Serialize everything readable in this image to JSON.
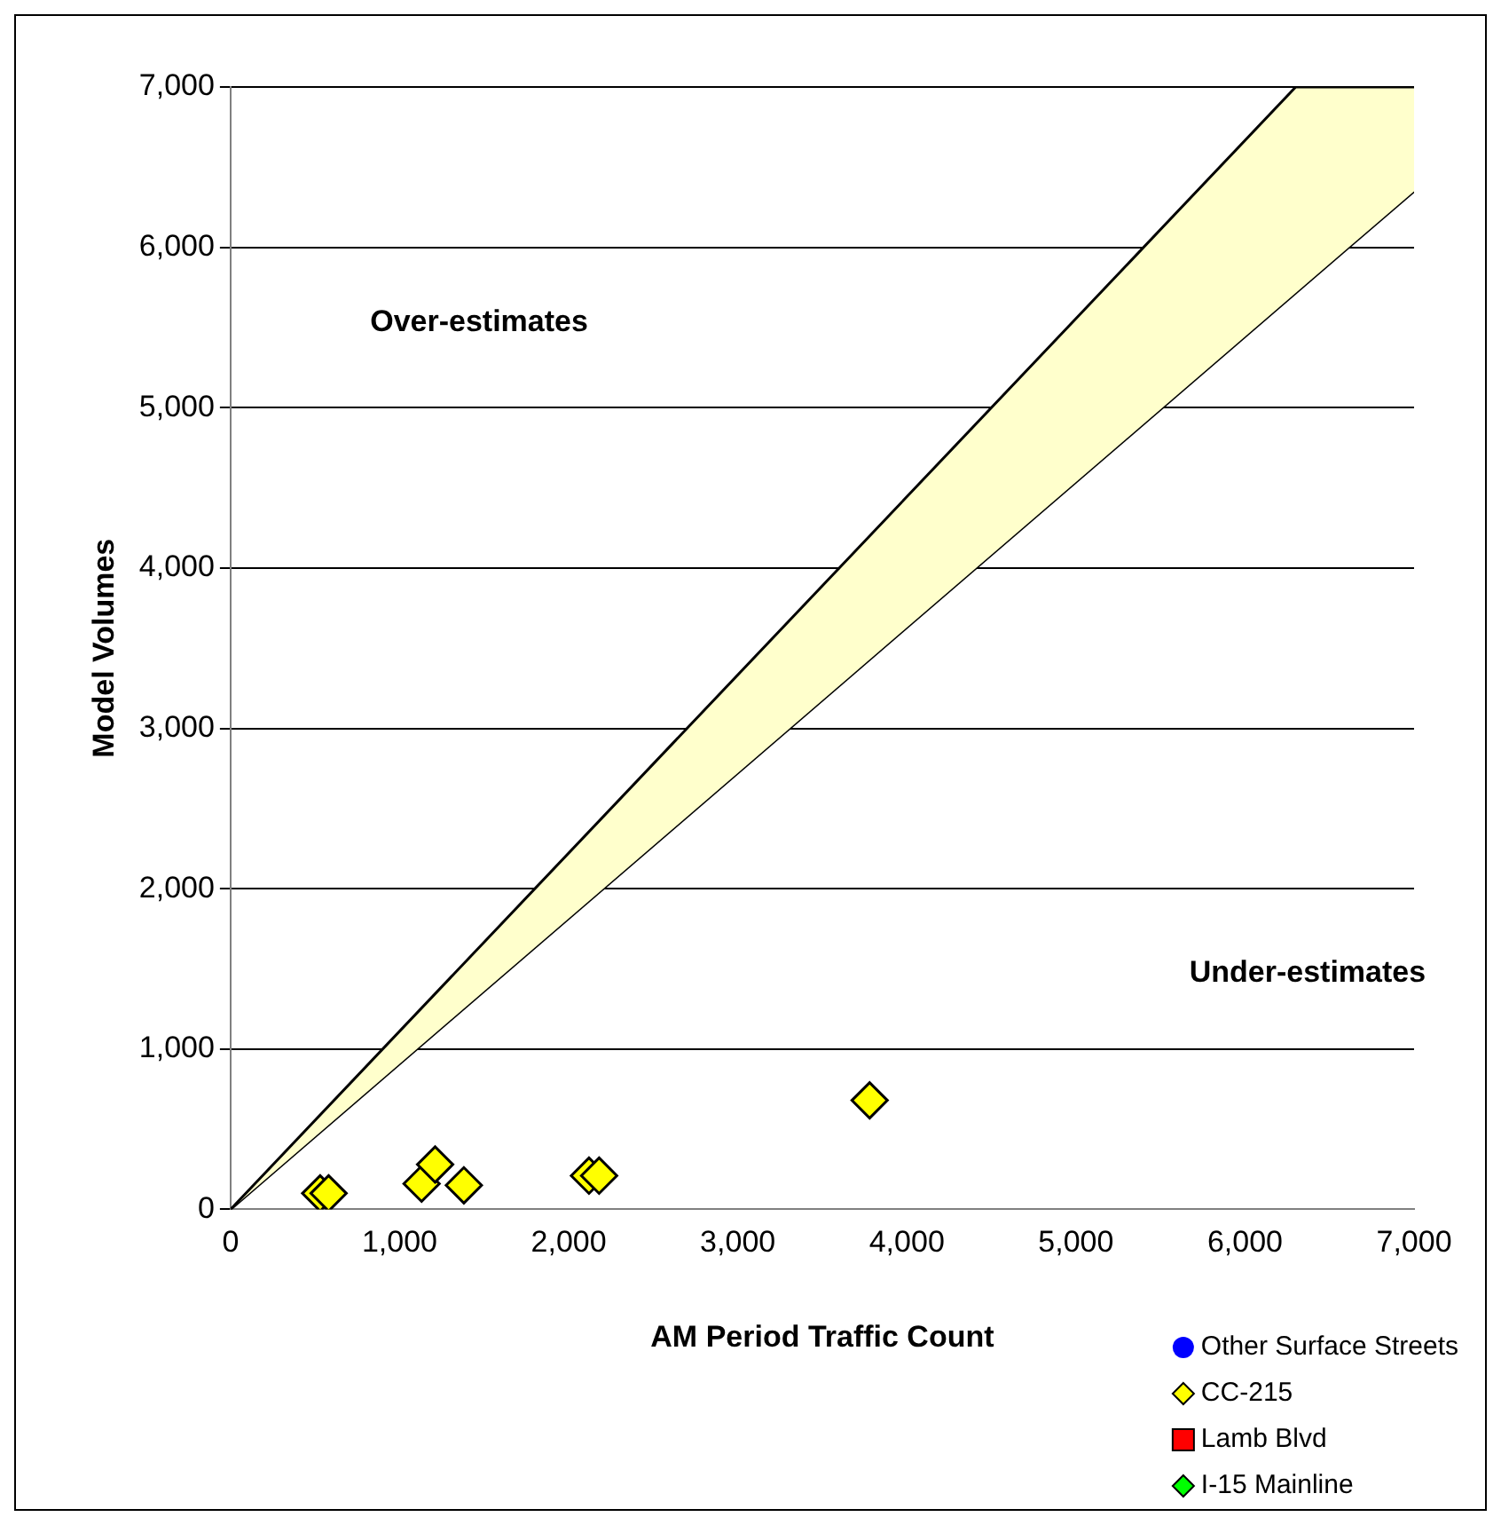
{
  "chart_data": {
    "type": "scatter",
    "xlabel": "AM Period Traffic Count",
    "ylabel": "Model Volumes",
    "xlim": [
      0,
      7000
    ],
    "ylim": [
      0,
      7000
    ],
    "xticks": [
      0,
      {
        "value": 1000,
        "label": "1,000"
      },
      {
        "value": 2000,
        "label": "2,000"
      },
      {
        "value": 3000,
        "label": "3,000"
      },
      {
        "value": 4000,
        "label": "4,000"
      },
      {
        "value": 5000,
        "label": "5,000"
      },
      {
        "value": 6000,
        "label": "6,000"
      },
      {
        "value": 7000,
        "label": "7,000"
      }
    ],
    "yticks": [
      0,
      {
        "value": 1000,
        "label": "1,000"
      },
      {
        "value": 2000,
        "label": "2,000"
      },
      {
        "value": 3000,
        "label": "3,000"
      },
      {
        "value": 4000,
        "label": "4,000"
      },
      {
        "value": 5000,
        "label": "5,000"
      },
      {
        "value": 6000,
        "label": "6,000"
      },
      {
        "value": 7000,
        "label": "7,000"
      }
    ],
    "grid": "y",
    "legend": "bottom right",
    "annotations": [
      "Over-estimates",
      "Under-estimates"
    ],
    "series": [
      {
        "type": "area",
        "color": "#ffffcc",
        "x": [
          0,
          6300,
          7000
        ],
        "values": [
          0,
          7000,
          7000
        ]
      },
      {
        "type": "line",
        "color": "#000000",
        "x": [
          0,
          7000
        ],
        "values": [
          0,
          6350
        ]
      },
      {
        "name": "Other Surface Streets",
        "color": "#0000ff",
        "marker": "circle"
      },
      {
        "name": "CC-215",
        "color": "#ffff00",
        "marker": "diamond",
        "x": [
          530,
          580,
          1130,
          1210,
          1380,
          2120,
          2180,
          3780
        ],
        "values": [
          100,
          100,
          160,
          280,
          150,
          210,
          210,
          680
        ]
      },
      {
        "name": "Lamb Blvd",
        "color": "#ff0000",
        "marker": "square"
      },
      {
        "name": "I-15 Mainline",
        "color": "#00ff00",
        "marker": "diamond"
      }
    ]
  }
}
